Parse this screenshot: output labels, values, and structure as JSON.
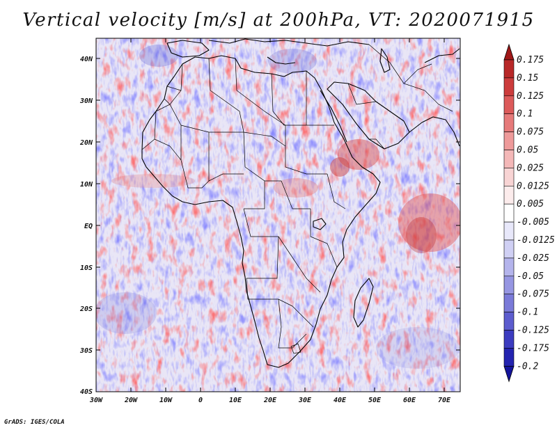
{
  "title": "Vertical velocity [m/s] at 200hPa, VT: 2020071915",
  "credit": "GrADS: IGES/COLA",
  "map": {
    "region": "Africa",
    "variable": "Vertical velocity",
    "units": "m/s",
    "level": "200hPa",
    "valid_time": "2020071915",
    "lon_range": [
      -30,
      75
    ],
    "lat_range": [
      -40,
      45
    ],
    "lat_ticks": [
      "40N",
      "30N",
      "20N",
      "10N",
      "EQ",
      "10S",
      "20S",
      "30S",
      "40S"
    ],
    "lon_ticks": [
      "30W",
      "20W",
      "10W",
      "0",
      "10E",
      "20E",
      "30E",
      "40E",
      "50E",
      "60E",
      "70E"
    ]
  },
  "colorbar": {
    "labels": [
      "0.175",
      "0.15",
      "0.125",
      "0.1",
      "0.075",
      "0.05",
      "0.025",
      "0.0125",
      "0.005",
      "-0.005",
      "-0.0125",
      "-0.025",
      "-0.05",
      "-0.075",
      "-0.1",
      "-0.125",
      "-0.175",
      "-0.2"
    ],
    "colors": [
      "#a01818",
      "#b82828",
      "#cc3c3c",
      "#dc5a5a",
      "#e67a7a",
      "#ee9a9a",
      "#f4b8b8",
      "#f8d4d4",
      "#fcecec",
      "#ffffff",
      "#e8e8fa",
      "#d0d0f4",
      "#b4b4ec",
      "#9696e2",
      "#7a7ad8",
      "#5c5cce",
      "#3c3cc0",
      "#2424b0",
      "#14149c"
    ]
  }
}
